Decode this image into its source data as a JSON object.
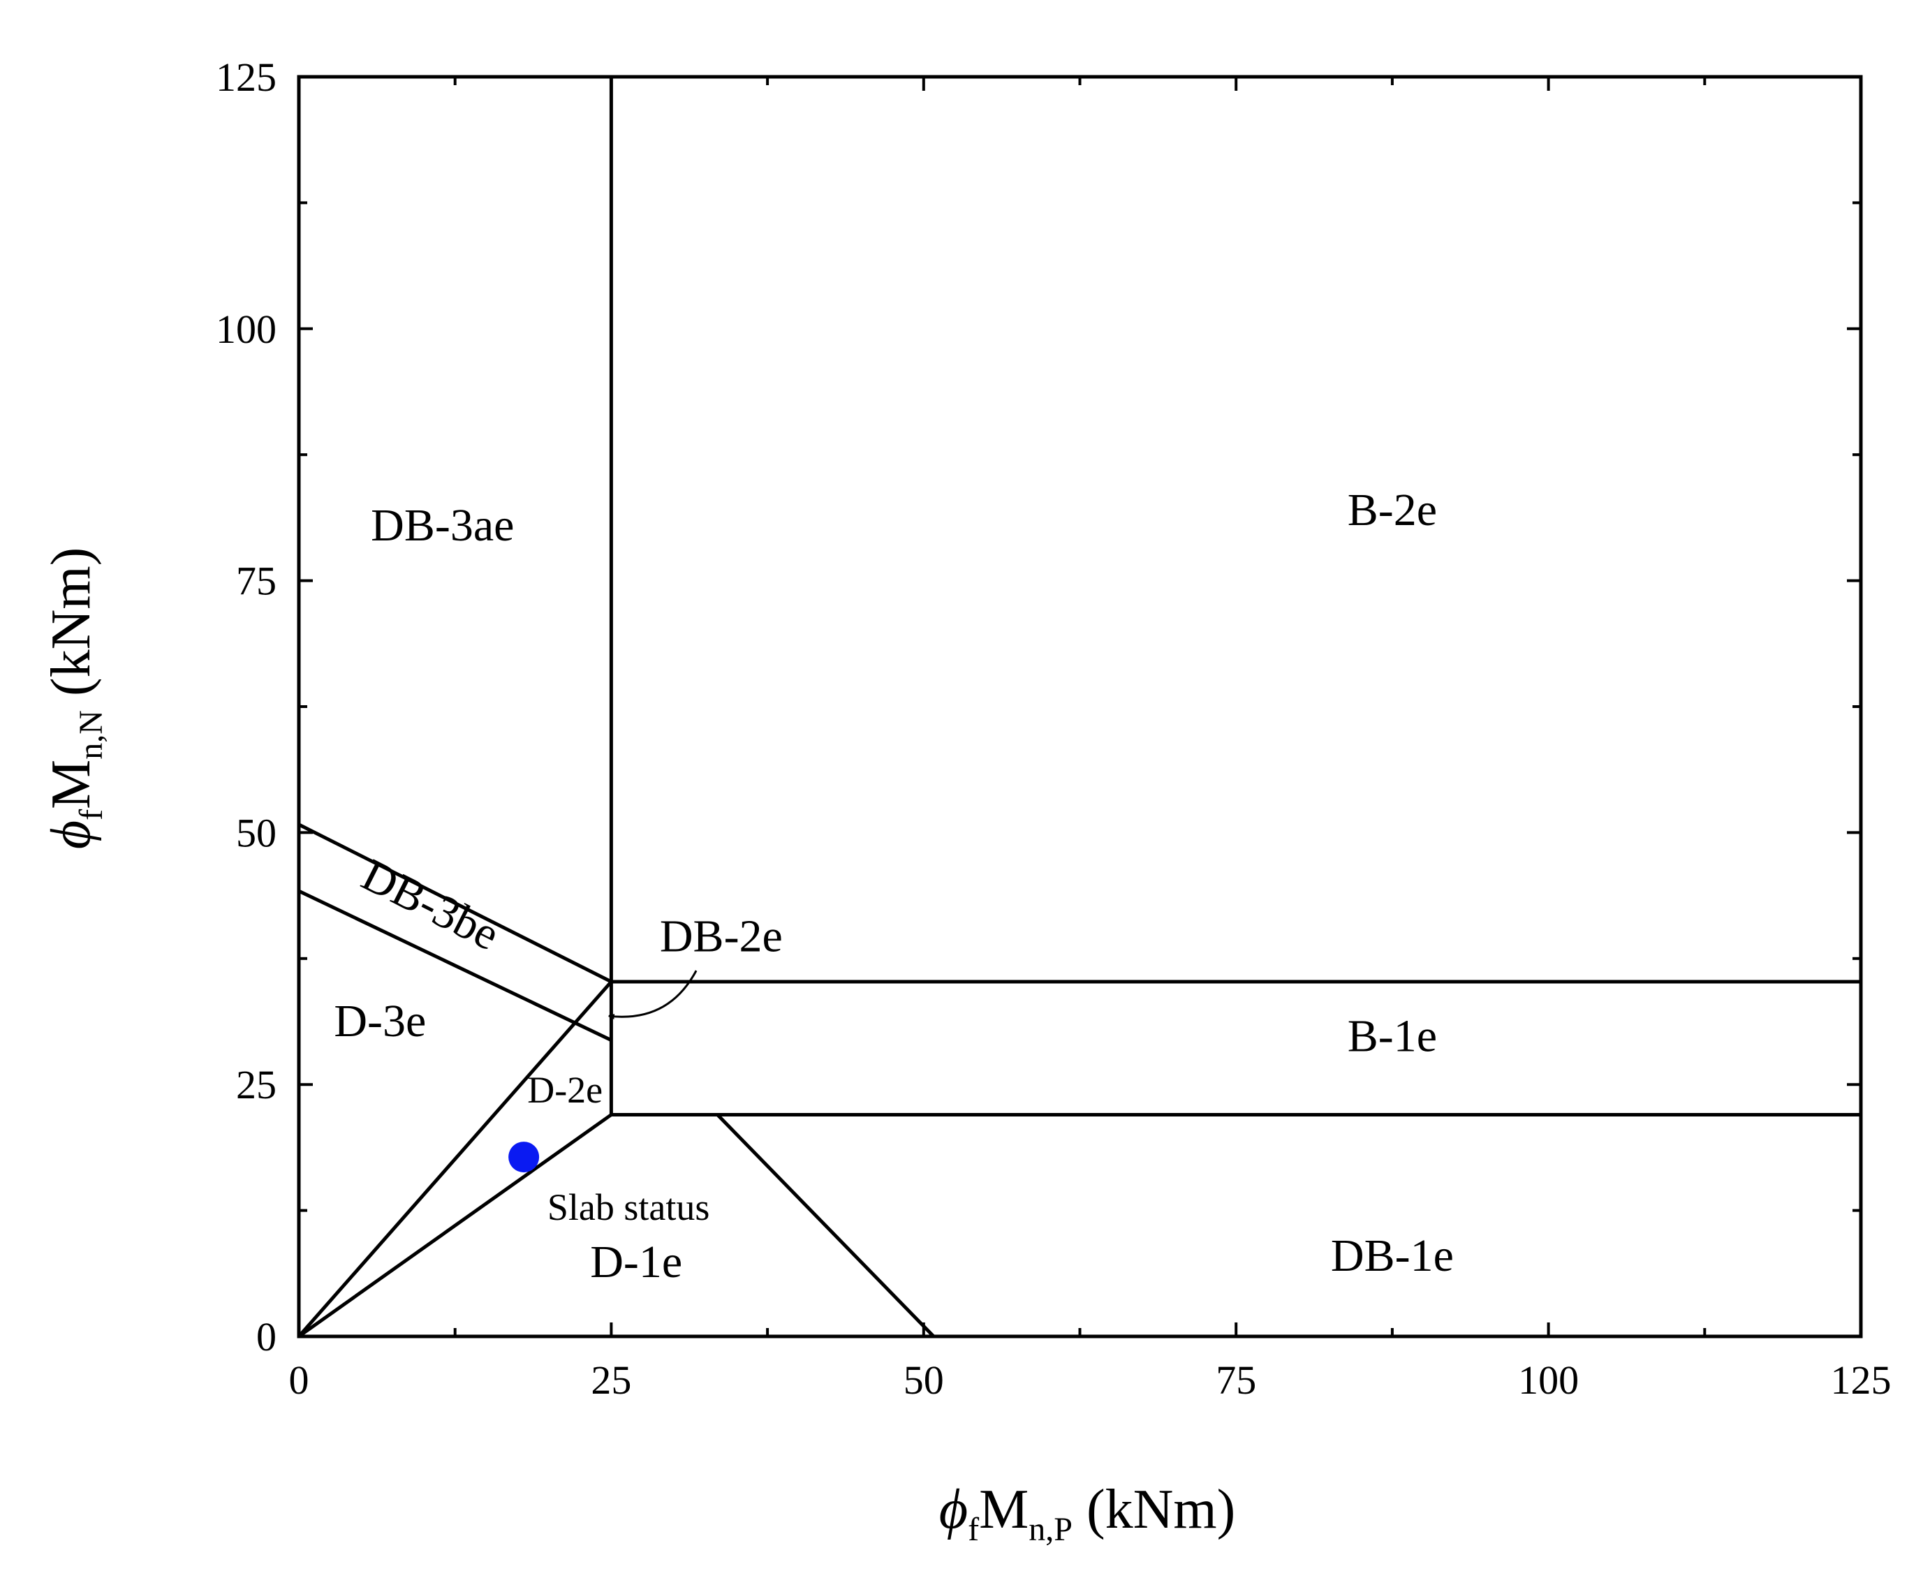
{
  "chart_data": {
    "type": "line",
    "title": "",
    "xlabel": {
      "prefix": "ϕ",
      "sub1": "f",
      "mid": "M",
      "sub2": "n,P",
      "suffix": " (kNm)"
    },
    "ylabel": {
      "prefix": "ϕ",
      "sub1": "f",
      "mid": "M",
      "sub2": "n,N",
      "suffix": " (kNm)"
    },
    "xlim": [
      0,
      125
    ],
    "ylim": [
      0,
      125
    ],
    "xticks": [
      "0",
      "25",
      "50",
      "75",
      "100",
      "125"
    ],
    "yticks": [
      "0",
      "25",
      "50",
      "75",
      "100",
      "125"
    ],
    "grid": false,
    "boundaries": [
      {
        "name": "x=25 vertical",
        "points": [
          [
            25,
            22
          ],
          [
            25,
            125
          ]
        ]
      },
      {
        "name": "upper DB-3be line",
        "points": [
          [
            0,
            50.8
          ],
          [
            25,
            35.2
          ]
        ]
      },
      {
        "name": "lower DB-3be line",
        "points": [
          [
            0,
            44.2
          ],
          [
            25,
            29.4
          ]
        ]
      },
      {
        "name": "B-1e top",
        "points": [
          [
            25,
            35.2
          ],
          [
            125,
            35.2
          ]
        ]
      },
      {
        "name": "B-1e bottom",
        "points": [
          [
            25,
            22
          ],
          [
            125,
            22
          ]
        ]
      },
      {
        "name": "D-2e upper edge",
        "points": [
          [
            0,
            0
          ],
          [
            25,
            35.2
          ]
        ]
      },
      {
        "name": "D-2e lower edge",
        "points": [
          [
            0,
            0
          ],
          [
            25,
            22
          ]
        ]
      },
      {
        "name": "D-1e / DB-1e boundary",
        "points": [
          [
            33.5,
            22
          ],
          [
            50.8,
            0
          ]
        ]
      }
    ],
    "regions": [
      {
        "label": "DB-3ae",
        "x": 11.5,
        "y": 79
      },
      {
        "label": "DB-3be",
        "x": 10,
        "y": 41.5,
        "rotate": true
      },
      {
        "label": "D-3e",
        "x": 6.5,
        "y": 29.8
      },
      {
        "label": "D-2e",
        "x": 21.3,
        "y": 23.2,
        "small": true
      },
      {
        "label": "D-1e",
        "x": 27,
        "y": 5.9
      },
      {
        "label": "DB-2e",
        "x": 33.8,
        "y": 38.2
      },
      {
        "label": "B-2e",
        "x": 87.5,
        "y": 80.5
      },
      {
        "label": "B-1e",
        "x": 87.5,
        "y": 28.3
      },
      {
        "label": "DB-1e",
        "x": 87.5,
        "y": 6.5
      }
    ],
    "points": [
      {
        "label": "Slab status",
        "x": 18,
        "y": 17.8,
        "color": "#0a1af2"
      }
    ],
    "annotation_arrow": {
      "label": "DB-2e",
      "from": [
        31.8,
        36.3
      ],
      "to": [
        24.8,
        31.8
      ]
    }
  }
}
